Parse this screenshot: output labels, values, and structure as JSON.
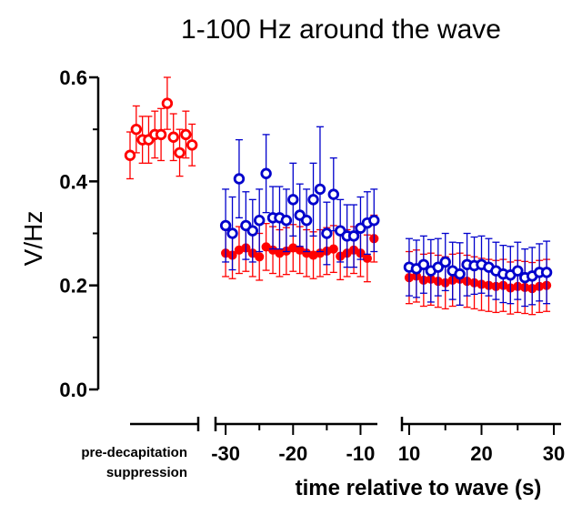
{
  "chart_data": {
    "type": "scatter",
    "title": "1-100 Hz around the wave",
    "ylabel": "V/Hz",
    "xlabel": "time relative to wave (s)",
    "ylim": [
      0.0,
      0.6
    ],
    "yticks": [
      "0.0",
      "0.2",
      "0.4",
      "0.6"
    ],
    "grid": false,
    "colors": {
      "red": "#ff0000",
      "blue": "#0000cc"
    },
    "segments": [
      {
        "name": "pre-decapitation",
        "label_lines": [
          "pre-decapitation",
          "suppression"
        ],
        "xlim": [
          0,
          11
        ],
        "xticks": [],
        "series": [
          {
            "marker": "open-circle",
            "color": "red",
            "x": [
              0,
              1,
              2,
              3,
              4,
              5,
              6,
              7,
              8,
              9,
              10
            ],
            "values": [
              0.45,
              0.5,
              0.48,
              0.48,
              0.49,
              0.49,
              0.55,
              0.485,
              0.455,
              0.49,
              0.47
            ],
            "errors": [
              0.045,
              0.045,
              0.045,
              0.045,
              0.045,
              0.05,
              0.05,
              0.045,
              0.045,
              0.045,
              0.04
            ]
          }
        ]
      },
      {
        "name": "before-wave",
        "xlim": [
          -31.5,
          -7.5
        ],
        "xticks": [
          -30,
          -20,
          -10
        ],
        "series": [
          {
            "marker": "filled-circle",
            "color": "red",
            "x": [
              -30,
              -29,
              -28,
              -27,
              -26,
              -25,
              -24,
              -23,
              -22,
              -21,
              -20,
              -19,
              -18,
              -17,
              -16,
              -15,
              -14,
              -13,
              -12,
              -11,
              -10,
              -9,
              -8
            ],
            "values": [
              0.262,
              0.258,
              0.268,
              0.272,
              0.262,
              0.255,
              0.274,
              0.268,
              0.262,
              0.266,
              0.272,
              0.268,
              0.262,
              0.258,
              0.262,
              0.266,
              0.27,
              0.256,
              0.262,
              0.268,
              0.262,
              0.252,
              0.29
            ],
            "errors": [
              0.045,
              0.045,
              0.045,
              0.045,
              0.045,
              0.045,
              0.045,
              0.045,
              0.045,
              0.045,
              0.045,
              0.045,
              0.045,
              0.045,
              0.045,
              0.045,
              0.045,
              0.045,
              0.045,
              0.045,
              0.045,
              0.045,
              0.045
            ]
          },
          {
            "marker": "open-circle",
            "color": "blue",
            "x": [
              -30,
              -29,
              -28,
              -27,
              -26,
              -25,
              -24,
              -23,
              -22,
              -21,
              -20,
              -19,
              -18,
              -17,
              -16,
              -15,
              -14,
              -13,
              -12,
              -11,
              -10,
              -9,
              -8
            ],
            "values": [
              0.315,
              0.3,
              0.405,
              0.315,
              0.305,
              0.325,
              0.415,
              0.33,
              0.33,
              0.325,
              0.365,
              0.335,
              0.325,
              0.365,
              0.385,
              0.3,
              0.375,
              0.305,
              0.295,
              0.295,
              0.31,
              0.32,
              0.325
            ],
            "errors": [
              0.07,
              0.07,
              0.075,
              0.065,
              0.06,
              0.06,
              0.075,
              0.06,
              0.06,
              0.06,
              0.07,
              0.06,
              0.06,
              0.07,
              0.12,
              0.06,
              0.07,
              0.06,
              0.06,
              0.06,
              0.06,
              0.06,
              0.06
            ]
          }
        ]
      },
      {
        "name": "after-wave",
        "xlim": [
          9,
          31
        ],
        "xticks": [
          10,
          20,
          30
        ],
        "series": [
          {
            "marker": "filled-circle",
            "color": "red",
            "x": [
              10,
              11,
              12,
              13,
              14,
              15,
              16,
              17,
              18,
              19,
              20,
              21,
              22,
              23,
              24,
              25,
              26,
              27,
              28,
              29
            ],
            "values": [
              0.215,
              0.218,
              0.21,
              0.212,
              0.208,
              0.205,
              0.21,
              0.212,
              0.208,
              0.205,
              0.202,
              0.2,
              0.198,
              0.2,
              0.195,
              0.198,
              0.196,
              0.194,
              0.198,
              0.2
            ],
            "errors": [
              0.05,
              0.05,
              0.05,
              0.05,
              0.05,
              0.05,
              0.05,
              0.05,
              0.05,
              0.05,
              0.05,
              0.05,
              0.05,
              0.05,
              0.05,
              0.05,
              0.05,
              0.05,
              0.05,
              0.05
            ]
          },
          {
            "marker": "open-circle",
            "color": "blue",
            "x": [
              10,
              11,
              12,
              13,
              14,
              15,
              16,
              17,
              18,
              19,
              20,
              21,
              22,
              23,
              24,
              25,
              26,
              27,
              28,
              29
            ],
            "values": [
              0.235,
              0.232,
              0.24,
              0.228,
              0.235,
              0.245,
              0.228,
              0.222,
              0.24,
              0.238,
              0.24,
              0.235,
              0.228,
              0.222,
              0.22,
              0.228,
              0.215,
              0.218,
              0.225,
              0.225
            ],
            "errors": [
              0.055,
              0.055,
              0.055,
              0.06,
              0.055,
              0.055,
              0.055,
              0.06,
              0.06,
              0.055,
              0.055,
              0.055,
              0.055,
              0.055,
              0.055,
              0.055,
              0.055,
              0.055,
              0.055,
              0.06
            ]
          }
        ]
      }
    ]
  }
}
